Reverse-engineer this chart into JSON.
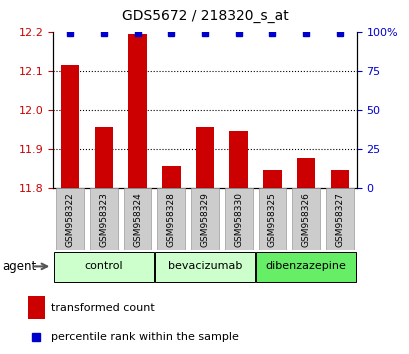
{
  "title": "GDS5672 / 218320_s_at",
  "samples": [
    "GSM958322",
    "GSM958323",
    "GSM958324",
    "GSM958328",
    "GSM958329",
    "GSM958330",
    "GSM958325",
    "GSM958326",
    "GSM958327"
  ],
  "bar_values": [
    12.115,
    11.955,
    12.195,
    11.855,
    11.955,
    11.945,
    11.845,
    11.875,
    11.845
  ],
  "percentile_values": [
    99,
    99,
    99,
    99,
    99,
    99,
    99,
    99,
    99
  ],
  "groups": [
    {
      "label": "control",
      "indices": [
        0,
        1,
        2
      ],
      "color": "#ccffcc"
    },
    {
      "label": "bevacizumab",
      "indices": [
        3,
        4,
        5
      ],
      "color": "#ccffcc"
    },
    {
      "label": "dibenzazepine",
      "indices": [
        6,
        7,
        8
      ],
      "color": "#66ee66"
    }
  ],
  "ylim_left": [
    11.8,
    12.2
  ],
  "ylim_right": [
    0,
    100
  ],
  "yticks_left": [
    11.8,
    11.9,
    12.0,
    12.1,
    12.2
  ],
  "yticks_right": [
    0,
    25,
    50,
    75,
    100
  ],
  "bar_color": "#cc0000",
  "dot_color": "#0000cc",
  "background_color": "#ffffff",
  "agent_label": "agent",
  "ylabel_left_color": "#cc0000",
  "ylabel_right_color": "#0000cc",
  "legend_bar_label": "transformed count",
  "legend_dot_label": "percentile rank within the sample",
  "grid_lines": [
    11.9,
    12.0,
    12.1
  ],
  "tick_box_color": "#cccccc",
  "tick_box_edge": "#999999"
}
